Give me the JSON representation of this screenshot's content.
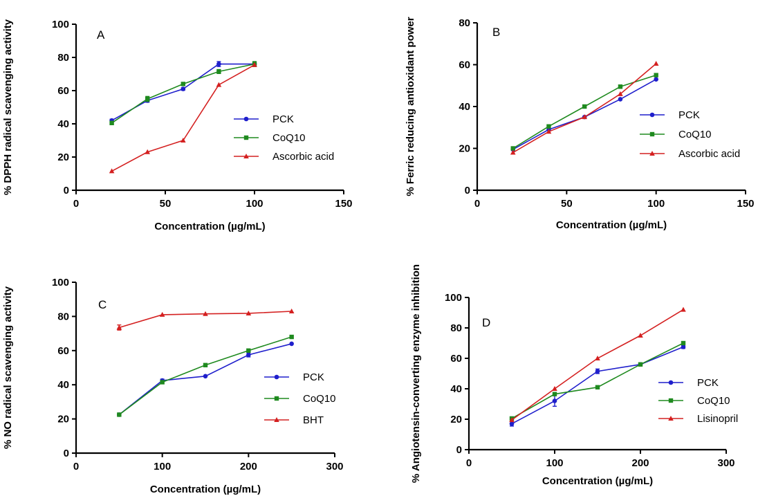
{
  "colors": {
    "PCK": "#1f1fcc",
    "CoQ10": "#1f8a1f",
    "ref": "#d42020"
  },
  "chart_data": [
    {
      "type": "line",
      "panel_label": "A",
      "xlabel": "Concentration (µg/mL)",
      "ylabel": "% DPPH radical scavenging activity",
      "xlim": [
        0,
        150
      ],
      "ylim": [
        0,
        100
      ],
      "xticks": [
        0,
        50,
        100,
        150
      ],
      "yticks": [
        0,
        20,
        40,
        60,
        80,
        100
      ],
      "x": [
        20,
        40,
        60,
        80,
        100
      ],
      "series": [
        {
          "name": "PCK",
          "color": "#1f1fcc",
          "marker": "circle",
          "values": [
            42,
            54,
            61,
            76,
            76
          ],
          "err": [
            0.8,
            1,
            0.8,
            1.5,
            1
          ]
        },
        {
          "name": "CoQ10",
          "color": "#1f8a1f",
          "marker": "square",
          "values": [
            40.5,
            55,
            64,
            71.5,
            76
          ],
          "err": [
            0.8,
            1.5,
            0.8,
            1.2,
            1.5
          ]
        },
        {
          "name": "Ascorbic acid",
          "color": "#d42020",
          "marker": "triangle",
          "values": [
            11.5,
            23,
            30,
            63.5,
            75.5
          ],
          "err": [
            0,
            0,
            0,
            0,
            0
          ]
        }
      ],
      "legend_position": "right"
    },
    {
      "type": "line",
      "panel_label": "B",
      "xlabel": "Concentration (µg/mL)",
      "ylabel": "% Ferric reducing antioxidant power",
      "xlim": [
        0,
        150
      ],
      "ylim": [
        0,
        80
      ],
      "xticks": [
        0,
        50,
        100,
        150
      ],
      "yticks": [
        0,
        20,
        40,
        60,
        80
      ],
      "x": [
        20,
        40,
        60,
        80,
        100
      ],
      "series": [
        {
          "name": "PCK",
          "color": "#1f1fcc",
          "marker": "circle",
          "values": [
            19.5,
            29,
            35,
            43.5,
            53
          ],
          "err": [
            0,
            0,
            0,
            0,
            0
          ]
        },
        {
          "name": "CoQ10",
          "color": "#1f8a1f",
          "marker": "square",
          "values": [
            20,
            30.5,
            40,
            49.5,
            55
          ],
          "err": [
            0,
            0,
            0,
            0,
            0
          ]
        },
        {
          "name": "Ascorbic acid",
          "color": "#d42020",
          "marker": "triangle",
          "values": [
            18,
            28,
            35,
            46,
            60.5
          ],
          "err": [
            0,
            0,
            0,
            0,
            0
          ]
        }
      ],
      "legend_position": "right"
    },
    {
      "type": "line",
      "panel_label": "C",
      "xlabel": "Concentration (µg/mL)",
      "ylabel": "% NO radical scavenging activity",
      "xlim": [
        0,
        300
      ],
      "ylim": [
        0,
        100
      ],
      "xticks": [
        0,
        100,
        200,
        300
      ],
      "yticks": [
        0,
        20,
        40,
        60,
        80,
        100
      ],
      "x": [
        50,
        100,
        150,
        200,
        250
      ],
      "series": [
        {
          "name": "PCK",
          "color": "#1f1fcc",
          "marker": "circle",
          "values": [
            22.5,
            42.5,
            45,
            57.5,
            64
          ],
          "err": [
            0,
            0.8,
            0,
            1.2,
            0
          ]
        },
        {
          "name": "CoQ10",
          "color": "#1f8a1f",
          "marker": "square",
          "values": [
            22.5,
            41.5,
            51.5,
            60,
            68
          ],
          "err": [
            0,
            0,
            0,
            0,
            0
          ]
        },
        {
          "name": "BHT",
          "color": "#d42020",
          "marker": "triangle",
          "values": [
            73.5,
            81,
            81.5,
            81.8,
            83
          ],
          "err": [
            1.5,
            0,
            0,
            0,
            0
          ]
        }
      ],
      "legend_position": "right"
    },
    {
      "type": "line",
      "panel_label": "D",
      "xlabel": "Concentration (µg/mL)",
      "ylabel": "% Angiotensin-converting enzyme inhibition",
      "xlim": [
        0,
        300
      ],
      "ylim": [
        0,
        100
      ],
      "xticks": [
        0,
        100,
        200,
        300
      ],
      "yticks": [
        0,
        20,
        40,
        60,
        80,
        100
      ],
      "x": [
        50,
        100,
        150,
        200,
        250
      ],
      "series": [
        {
          "name": "PCK",
          "color": "#1f1fcc",
          "marker": "circle",
          "values": [
            17,
            32,
            51.5,
            56,
            67.5
          ],
          "err": [
            1.5,
            3.5,
            1.5,
            0.8,
            1
          ]
        },
        {
          "name": "CoQ10",
          "color": "#1f8a1f",
          "marker": "square",
          "values": [
            20.5,
            36.5,
            41,
            56,
            70
          ],
          "err": [
            0,
            0,
            0,
            0,
            0
          ]
        },
        {
          "name": "Lisinopril",
          "color": "#d42020",
          "marker": "triangle",
          "values": [
            19.5,
            40,
            60,
            75,
            92
          ],
          "err": [
            0,
            0,
            0,
            0,
            0
          ]
        }
      ],
      "legend_position": "bottom-right"
    }
  ]
}
